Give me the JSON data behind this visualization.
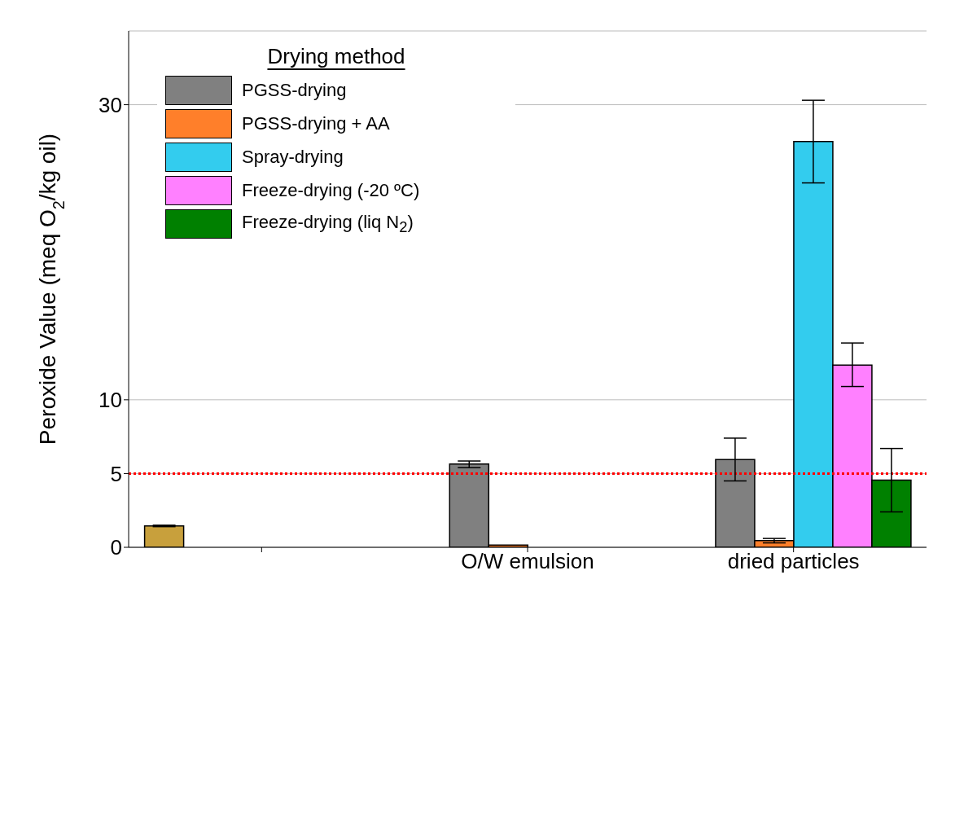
{
  "chart_data": {
    "type": "bar",
    "ylabel": "Peroxide Value (meq O$_{2}$/kg oil)",
    "legend_title": "Drying method",
    "categories": [
      null,
      "O/W emulsion",
      "dried particles"
    ],
    "series": [
      {
        "color": "#c8a03c",
        "values": [
          1.45,
          null,
          null
        ],
        "errors": [
          0.05,
          null,
          null
        ]
      },
      {
        "name": "PGSS-drying",
        "color": "#808080",
        "values": [
          null,
          5.65,
          5.95
        ],
        "errors": [
          null,
          [
            5.4,
            5.85
          ],
          [
            4.5,
            7.4
          ]
        ]
      },
      {
        "name": "PGSS-drying + AA",
        "color": "#ff7f2a",
        "values": [
          null,
          0.15,
          0.45
        ],
        "errors": [
          null,
          null,
          [
            0.3,
            0.6
          ]
        ]
      },
      {
        "name": "Spray-drying",
        "color": "#33ccee",
        "values": [
          null,
          null,
          27.5
        ],
        "errors": [
          null,
          null,
          [
            24.7,
            30.3
          ]
        ]
      },
      {
        "name": "Freeze-drying (-20 ºC)",
        "color": "#ff80ff",
        "values": [
          null,
          null,
          12.35
        ],
        "errors": [
          null,
          null,
          [
            10.9,
            13.85
          ]
        ]
      },
      {
        "name": "Freeze-drying (liq N$_{2}$)",
        "color": "#008000",
        "values": [
          null,
          null,
          4.55
        ],
        "errors": [
          null,
          null,
          [
            2.4,
            6.7
          ]
        ]
      }
    ],
    "ylim": [
      0,
      35
    ],
    "yticks": [
      0,
      5,
      10,
      30
    ],
    "grid": "y",
    "legend": "top left",
    "ref_lines": [
      {
        "axis": "y",
        "value": 5,
        "color": "#ff0000",
        "line_style": "dotted"
      }
    ]
  }
}
